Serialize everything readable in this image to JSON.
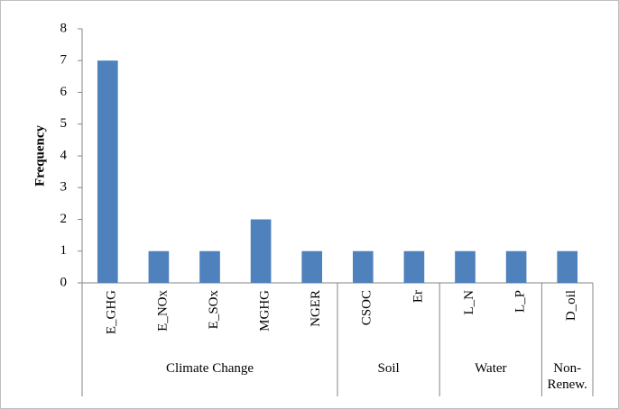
{
  "chart_data": {
    "type": "bar",
    "y_label": "Frequency",
    "categories": [
      "E_GHG",
      "E_NOx",
      "E_SOx",
      "MGHG",
      "NGER",
      "CSOC",
      "Er",
      "L_N",
      "L_P",
      "D_oil"
    ],
    "category_groups": [
      "Climate Change",
      "Climate Change",
      "Climate Change",
      "Climate Change",
      "Climate Change",
      "Soil",
      "Soil",
      "Water",
      "Water",
      "Non-\nRenew."
    ],
    "values": [
      7,
      1,
      1,
      2,
      1,
      1,
      1,
      1,
      1,
      1
    ],
    "color": "#4f81bd",
    "ylim": [
      0,
      8
    ],
    "yticks": [
      0,
      1,
      2,
      3,
      4,
      5,
      6,
      7,
      8
    ],
    "grid": false
  }
}
